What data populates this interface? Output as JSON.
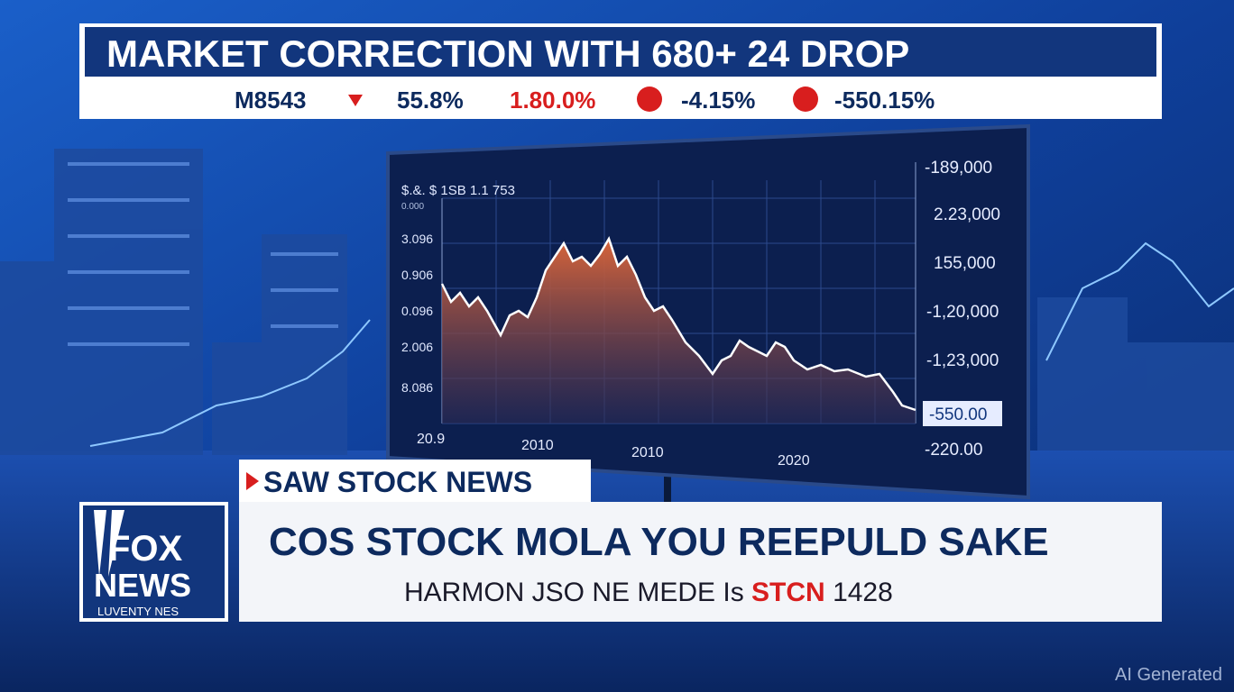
{
  "headline": {
    "title": "MARKET CORRECTION WITH 680+ 24 DROP"
  },
  "ticker": {
    "items": [
      "M8543",
      "55.8%",
      "1.80.0%",
      "-4.15%",
      "-550.15%"
    ]
  },
  "monitor": {
    "title": "$.&. $ 1SB 1.1 753",
    "subtitle": "0.000",
    "left_labels": [
      "3.096",
      "0.906",
      "0.096",
      "2.006",
      "8.086"
    ],
    "right_labels": [
      "-189,000",
      "2.23,000",
      "155,000",
      "-1,20,000",
      "-1,23,000",
      "-220.00"
    ],
    "highlight": "-550.00",
    "x_labels": [
      "20.9",
      "2010",
      "2010",
      "2020"
    ]
  },
  "lower_third": {
    "tag": "SAW STOCK NEWS",
    "headline": "COS STOCK MOLA YOU REEPULD SAKE",
    "sub_start": "HARMON JSO NE MEDE Is",
    "sub_red": "STCN",
    "sub_end": "1428"
  },
  "logo": {
    "line1": "FOX",
    "line2": "NEWS",
    "line3": "LUVENTY NES"
  },
  "watermark": "AI Generated"
}
